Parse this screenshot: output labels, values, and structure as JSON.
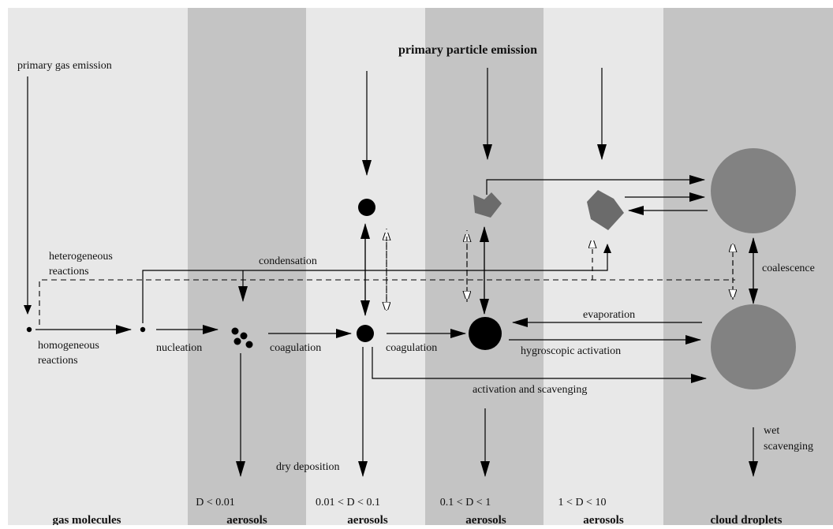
{
  "title": "primary particle emission",
  "labels": {
    "primary_gas_emission": "primary gas emission",
    "heterogeneous_reactions_1": "heterogeneous",
    "heterogeneous_reactions_2": "reactions",
    "condensation": "condensation",
    "homogeneous_reactions_1": "homogeneous",
    "homogeneous_reactions_2": "reactions",
    "nucleation": "nucleation",
    "coagulation_1": "coagulation",
    "coagulation_2": "coagulation",
    "evaporation": "evaporation",
    "hygroscopic_activation": "hygroscopic activation",
    "activation_and_scavenging": "activation and scavenging",
    "coalescence": "coalescence",
    "dry_deposition": "dry deposition",
    "wet_scavenging_1": "wet",
    "wet_scavenging_2": "scavenging"
  },
  "columns": [
    {
      "size": "",
      "name": "gas molecules",
      "shade": "#e8e8e8"
    },
    {
      "size": "D < 0.01",
      "name": "aerosols",
      "shade": "#c4c4c4"
    },
    {
      "size": "0.01 < D < 0.1",
      "name": "aerosols",
      "shade": "#e8e8e8"
    },
    {
      "size": "0.1 < D < 1",
      "name": "aerosols",
      "shade": "#c4c4c4"
    },
    {
      "size": "1 < D < 10",
      "name": "aerosols",
      "shade": "#e8e8e8"
    },
    {
      "size": "",
      "name": "cloud droplets",
      "shade": "#c4c4c4"
    }
  ],
  "colors": {
    "particle_black": "#000000",
    "particle_grey": "#6b6b6b",
    "droplet_grey": "#828282",
    "arrow": "#000000"
  }
}
